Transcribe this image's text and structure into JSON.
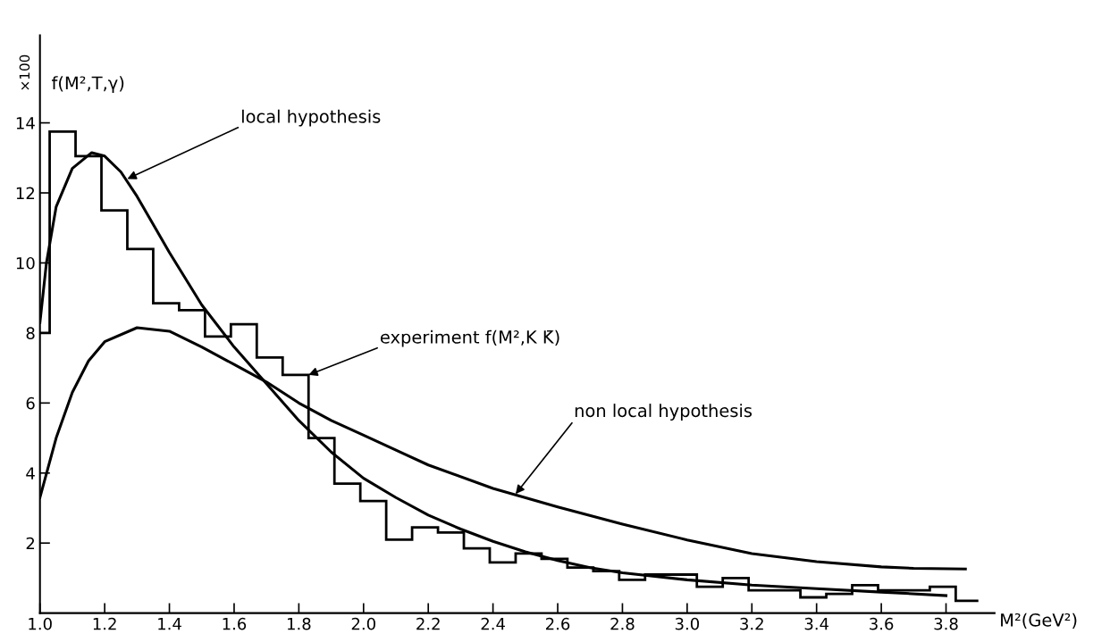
{
  "chart_data": {
    "type": "histogram",
    "xlabel": "M²(GeV²)",
    "ylabel": "f(M²,T,γ)",
    "bins": [
      1.0,
      1.03,
      1.11,
      1.19,
      1.27,
      1.35,
      1.43,
      1.51,
      1.59,
      1.67,
      1.75,
      1.83,
      1.91,
      1.99,
      2.07,
      2.15,
      2.23,
      2.31,
      2.39,
      2.47,
      2.55,
      2.63,
      2.71,
      2.79,
      2.87,
      2.95,
      3.03,
      3.11,
      3.19,
      3.27,
      3.35,
      3.43,
      3.51,
      3.59,
      3.67,
      3.75,
      3.83,
      3.9
    ],
    "values": [
      8.0,
      13.75,
      13.05,
      11.5,
      10.4,
      8.85,
      8.65,
      7.9,
      8.25,
      7.3,
      6.8,
      5.0,
      3.7,
      3.2,
      2.1,
      2.45,
      2.3,
      1.85,
      1.45,
      1.7,
      1.55,
      1.3,
      1.2,
      0.95,
      1.1,
      1.1,
      0.75,
      1.0,
      0.65,
      0.65,
      0.45,
      0.55,
      0.8,
      0.65,
      0.65,
      0.75,
      0.35
    ],
    "color": "#000000",
    "series": [
      {
        "type": "line",
        "color": "#000000",
        "x": [
          1.0,
          1.02,
          1.05,
          1.1,
          1.16,
          1.2,
          1.25,
          1.3,
          1.4,
          1.5,
          1.6,
          1.7,
          1.8,
          1.9,
          2.0,
          2.1,
          2.2,
          2.3,
          2.4,
          2.5,
          2.6,
          2.7,
          2.8,
          3.0,
          3.2,
          3.4,
          3.6,
          3.8
        ],
        "values": [
          8.3,
          10.0,
          11.6,
          12.7,
          13.15,
          13.05,
          12.6,
          11.9,
          10.3,
          8.8,
          7.6,
          6.55,
          5.5,
          4.6,
          3.85,
          3.3,
          2.8,
          2.4,
          2.05,
          1.75,
          1.5,
          1.3,
          1.15,
          0.95,
          0.8,
          0.7,
          0.6,
          0.5
        ]
      },
      {
        "type": "line",
        "color": "#000000",
        "x": [
          1.0,
          1.05,
          1.1,
          1.15,
          1.2,
          1.3,
          1.4,
          1.5,
          1.6,
          1.7,
          1.8,
          1.9,
          2.0,
          2.2,
          2.4,
          2.6,
          2.8,
          3.0,
          3.2,
          3.4,
          3.6,
          3.7,
          3.86
        ],
        "values": [
          3.3,
          5.0,
          6.3,
          7.2,
          7.75,
          8.15,
          8.05,
          7.6,
          7.1,
          6.6,
          6.0,
          5.5,
          5.08,
          4.23,
          3.56,
          3.03,
          2.54,
          2.09,
          1.7,
          1.47,
          1.32,
          1.28,
          1.26
        ]
      }
    ],
    "xlim": [
      1.0,
      3.95
    ],
    "ylim": [
      0,
      16.5
    ],
    "xticks": [
      {
        "value": 1.0,
        "label": "1.0"
      },
      1.2,
      1.4,
      1.6,
      1.8,
      {
        "value": 2.0,
        "label": "2.0"
      },
      2.2,
      2.4,
      2.6,
      2.8,
      {
        "value": 3.0,
        "label": "3.0"
      },
      3.2,
      3.4,
      3.6,
      3.8
    ],
    "yticks": [
      2,
      4,
      6,
      8,
      10,
      12,
      14
    ],
    "grid": false,
    "marker": "none",
    "line_style": "solid",
    "annotations": [
      "×100",
      {
        "text": "local hypothesis",
        "x": 1.27,
        "y": 12.4
      },
      {
        "text": "experiment f(M²,K K̄)",
        "x": 1.83,
        "y": 6.8
      },
      {
        "text": "non local hypothesis",
        "x": 2.47,
        "y": 3.4
      }
    ]
  }
}
